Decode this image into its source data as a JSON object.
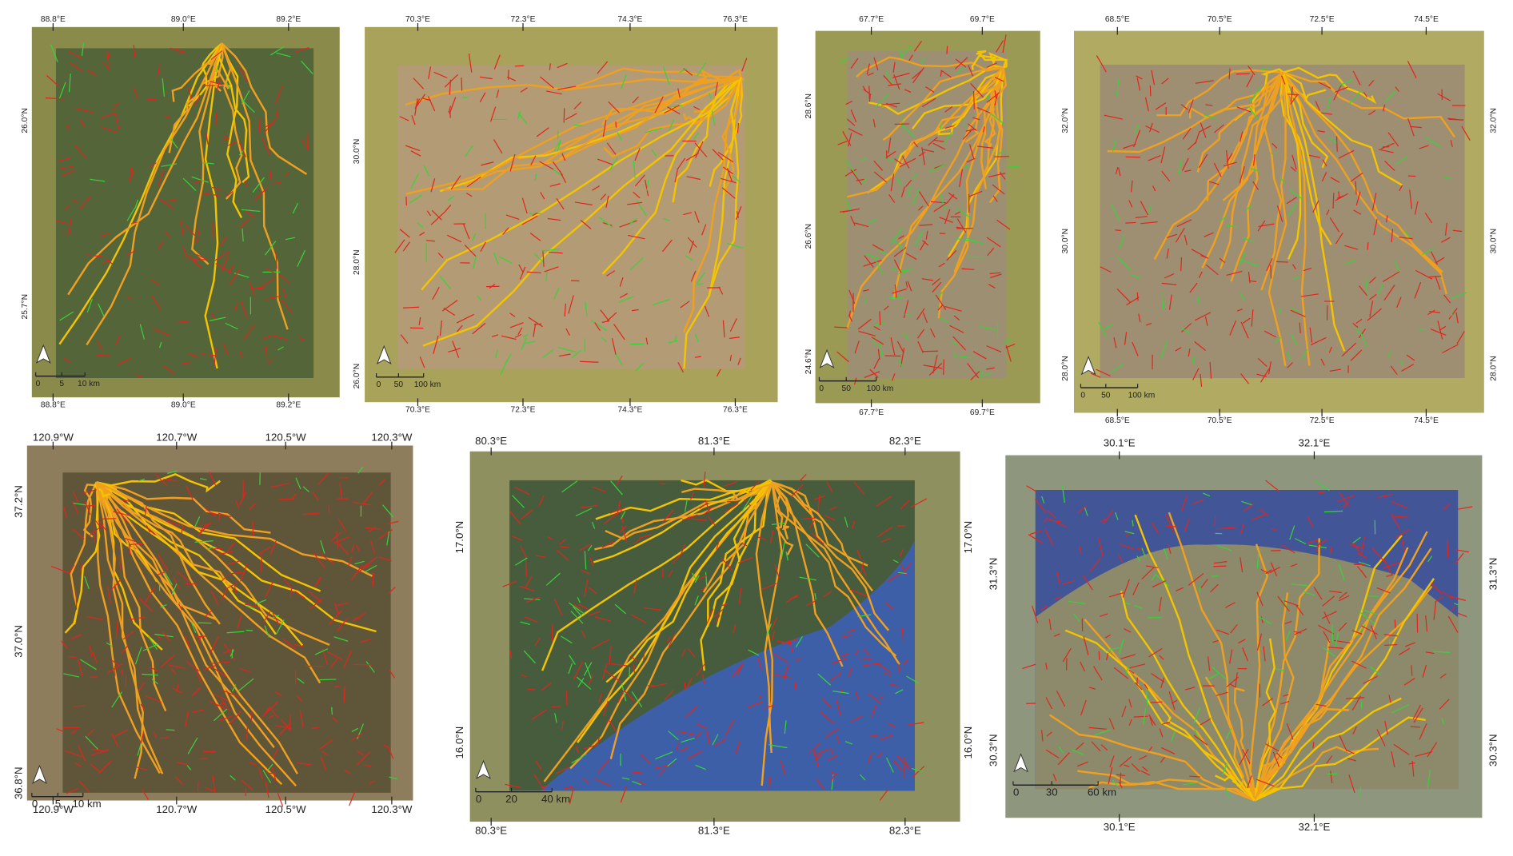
{
  "panels": [
    {
      "lon_top": [
        "88.8°E",
        "89.0°E",
        "89.2°E"
      ],
      "lon_bottom": [
        "88.8°E",
        "89.0°E",
        "89.2°E"
      ],
      "lat_left": [
        "26.0°N",
        "25.7°N"
      ],
      "lat_right": [],
      "scale": [
        "0",
        "5",
        "10 km"
      ]
    },
    {
      "lon_top": [
        "70.3°E",
        "72.3°E",
        "74.3°E",
        "76.3°E"
      ],
      "lon_bottom": [
        "70.3°E",
        "72.3°E",
        "74.3°E",
        "76.3°E"
      ],
      "lat_left": [
        "30.0°N",
        "28.0°N",
        "26.0°N"
      ],
      "lat_right": [],
      "scale": [
        "0",
        "50",
        "100 km"
      ]
    },
    {
      "lon_top": [
        "67.7°E",
        "69.7°E"
      ],
      "lon_bottom": [
        "67.7°E",
        "69.7°E"
      ],
      "lat_left": [
        "28.6°N",
        "26.6°N",
        "24.6°N"
      ],
      "lat_right": [],
      "scale": [
        "0",
        "50",
        "100 km"
      ]
    },
    {
      "lon_top": [
        "68.5°E",
        "70.5°E",
        "72.5°E",
        "74.5°E"
      ],
      "lon_bottom": [
        "68.5°E",
        "70.5°E",
        "72.5°E",
        "74.5°E"
      ],
      "lat_left": [
        "32.0°N",
        "30.0°N",
        "28.0°N"
      ],
      "lat_right": [
        "32.0°N",
        "30.0°N",
        "28.0°N"
      ],
      "scale": [
        "0",
        "50",
        "100 km"
      ]
    },
    {
      "lon_top": [
        "120.9°W",
        "120.7°W",
        "120.5°W",
        "120.3°W"
      ],
      "lon_bottom": [
        "120.9°W",
        "120.7°W",
        "120.5°W",
        "120.3°W"
      ],
      "lat_left": [
        "37.2°N",
        "37.0°N",
        "36.8°N"
      ],
      "lat_right": [],
      "scale": [
        "0",
        "5",
        "10 km"
      ]
    },
    {
      "lon_top": [
        "80.3°E",
        "81.3°E",
        "82.3°E"
      ],
      "lon_bottom": [
        "80.3°E",
        "81.3°E",
        "82.3°E"
      ],
      "lat_left": [
        "17.0°N",
        "16.0°N"
      ],
      "lat_right": [
        "17.0°N",
        "16.0°N"
      ],
      "scale": [
        "0",
        "20",
        "40 km"
      ]
    },
    {
      "lon_top": [
        "30.1°E",
        "32.1°E"
      ],
      "lon_bottom": [
        "30.1°E",
        "32.1°E"
      ],
      "lat_left": [
        "31.3°N",
        "30.3°N"
      ],
      "lat_right": [
        "31.3°N",
        "30.3°N"
      ],
      "scale": [
        "0",
        "30",
        "60 km"
      ]
    }
  ]
}
